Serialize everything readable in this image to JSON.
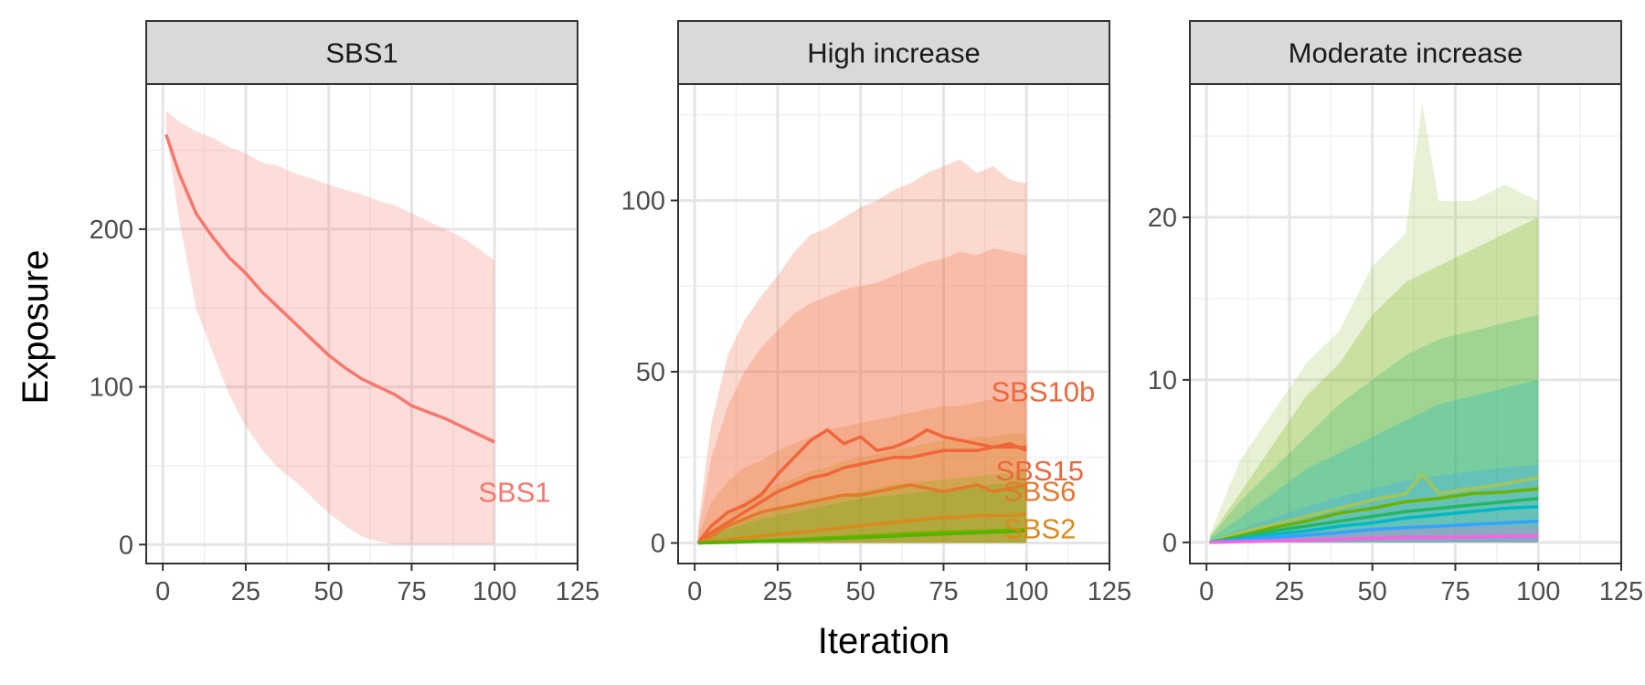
{
  "chart_data": {
    "type": "line",
    "xlabel": "Iteration",
    "ylabel": "Exposure",
    "grid": true,
    "legend": "none (direct labels)",
    "panels": [
      {
        "title": "SBS1",
        "xlim": [
          -5,
          125
        ],
        "ylim": [
          -12,
          292
        ],
        "xticks": [
          0,
          25,
          50,
          75,
          100,
          125
        ],
        "yticks": [
          0,
          100,
          200
        ],
        "series": [
          {
            "name": "SBS1",
            "color": "#F8766D",
            "x": [
              1,
              5,
              10,
              15,
              20,
              25,
              30,
              35,
              40,
              45,
              50,
              55,
              60,
              65,
              70,
              75,
              80,
              85,
              90,
              95,
              100
            ],
            "y": [
              260,
              235,
              210,
              195,
              182,
              172,
              160,
              150,
              140,
              130,
              120,
              112,
              105,
              100,
              95,
              88,
              84,
              80,
              75,
              70,
              65
            ],
            "lower": [
              262,
              205,
              150,
              122,
              95,
              75,
              60,
              48,
              40,
              30,
              20,
              12,
              5,
              2,
              0,
              0,
              0,
              0,
              0,
              0,
              0
            ],
            "upper": [
              275,
              268,
              262,
              258,
              252,
              248,
              242,
              240,
              235,
              232,
              228,
              225,
              222,
              218,
              215,
              210,
              205,
              200,
              195,
              188,
              180
            ]
          }
        ]
      },
      {
        "title": "High increase",
        "xlim": [
          -5,
          125
        ],
        "ylim": [
          -6,
          134
        ],
        "xticks": [
          0,
          25,
          50,
          75,
          100,
          125
        ],
        "yticks": [
          0,
          50,
          100
        ],
        "series": [
          {
            "name": "SBS10b",
            "color": "#F0663A",
            "x": [
              1,
              5,
              10,
              15,
              20,
              25,
              30,
              35,
              40,
              45,
              50,
              55,
              60,
              65,
              70,
              75,
              80,
              85,
              90,
              95,
              100
            ],
            "y": [
              0,
              5,
              9,
              11,
              14,
              20,
              25,
              30,
              33,
              29,
              31,
              27,
              28,
              30,
              33,
              31,
              30,
              29,
              28,
              29,
              27
            ],
            "lower": [
              0,
              0,
              0,
              0,
              0,
              0,
              0,
              0,
              0,
              0,
              0,
              0,
              0,
              0,
              0,
              0,
              0,
              0,
              0,
              0,
              0
            ],
            "upper": [
              5,
              35,
              55,
              65,
              72,
              78,
              85,
              90,
              92,
              95,
              98,
              100,
              103,
              105,
              108,
              110,
              112,
              108,
              110,
              106,
              105
            ]
          },
          {
            "name": "SBS15",
            "color": "#F0663A",
            "x": [
              1,
              5,
              10,
              15,
              20,
              25,
              30,
              35,
              40,
              45,
              50,
              55,
              60,
              65,
              70,
              75,
              80,
              85,
              90,
              95,
              100
            ],
            "y": [
              0,
              3,
              6,
              9,
              12,
              15,
              17,
              19,
              20,
              22,
              23,
              24,
              25,
              25,
              26,
              27,
              27,
              27,
              28,
              28,
              28
            ],
            "lower": [
              0,
              0,
              0,
              0,
              0,
              0,
              0,
              0,
              0,
              0,
              0,
              0,
              0,
              0,
              0,
              0,
              0,
              0,
              0,
              0,
              0
            ],
            "upper": [
              3,
              25,
              40,
              50,
              57,
              62,
              67,
              70,
              72,
              74,
              75,
              76,
              78,
              80,
              82,
              83,
              85,
              84,
              86,
              85,
              84
            ]
          },
          {
            "name": "SBS6",
            "color": "#E4792A",
            "x": [
              1,
              5,
              10,
              15,
              20,
              25,
              30,
              35,
              40,
              45,
              50,
              55,
              60,
              65,
              70,
              75,
              80,
              85,
              90,
              95,
              100
            ],
            "y": [
              0,
              2,
              5,
              7,
              9,
              10,
              11,
              12,
              13,
              14,
              14,
              15,
              16,
              17,
              16,
              15,
              16,
              17,
              15,
              16,
              17
            ],
            "lower": [
              0,
              0,
              0,
              0,
              0,
              0,
              0,
              0,
              0,
              0,
              0,
              0,
              0,
              0,
              0,
              0,
              0,
              0,
              0,
              0,
              0
            ],
            "upper": [
              2,
              12,
              18,
              22,
              24,
              27,
              29,
              31,
              33,
              34,
              35,
              36,
              37,
              38,
              39,
              40,
              40,
              41,
              42,
              41,
              42
            ]
          },
          {
            "name": "SBS2",
            "color": "#D98A1E",
            "x": [
              1,
              5,
              10,
              15,
              20,
              25,
              30,
              35,
              40,
              45,
              50,
              55,
              60,
              65,
              70,
              75,
              80,
              85,
              90,
              95,
              100
            ],
            "y": [
              0,
              0.5,
              1,
              1.5,
              2,
              2.5,
              3,
              3.5,
              4,
              4.5,
              5,
              5.5,
              6,
              6.5,
              7,
              7.5,
              7.5,
              8,
              8,
              8,
              8.5
            ],
            "lower": [
              0,
              0,
              0,
              0,
              0,
              0,
              0,
              0,
              0,
              0,
              0,
              0,
              0,
              0,
              0,
              0,
              0,
              0,
              0,
              0,
              0
            ],
            "upper": [
              1,
              5,
              9,
              12,
              15,
              17,
              19,
              21,
              22,
              24,
              25,
              26,
              27,
              28,
              29,
              30,
              30,
              31,
              31,
              32,
              32
            ]
          },
          {
            "name": "",
            "color": "#7CAE00",
            "x": [
              1,
              10,
              20,
              30,
              40,
              50,
              60,
              70,
              80,
              90,
              100
            ],
            "y": [
              0,
              0.3,
              0.6,
              1,
              1.5,
              2,
              2.5,
              3,
              3.3,
              3.6,
              4
            ],
            "lower": [
              0,
              0,
              0,
              0,
              0,
              0,
              0,
              0,
              0,
              0,
              0
            ],
            "upper": [
              1,
              5,
              8,
              11,
              13,
              15,
              17,
              18,
              19,
              20,
              21
            ]
          },
          {
            "name": "",
            "color": "#53B400",
            "x": [
              1,
              10,
              20,
              30,
              40,
              50,
              60,
              70,
              80,
              90,
              100
            ],
            "y": [
              0,
              0.2,
              0.5,
              0.8,
              1.2,
              1.6,
              2,
              2.4,
              2.8,
              3.2,
              3.5
            ],
            "lower": [
              0,
              0,
              0,
              0,
              0,
              0,
              0,
              0,
              0,
              0,
              0
            ],
            "upper": [
              1,
              4,
              7,
              9,
              11,
              13,
              14,
              15,
              16,
              17,
              18
            ]
          }
        ],
        "labels": [
          {
            "text": "SBS10b",
            "x": 105,
            "y": 44,
            "color": "#F0663A"
          },
          {
            "text": "SBS15",
            "x": 104,
            "y": 21,
            "color": "#F0663A"
          },
          {
            "text": "SBS6",
            "x": 104,
            "y": 15,
            "color": "#E4792A"
          },
          {
            "text": "SBS2",
            "x": 104,
            "y": 4,
            "color": "#D98A1E"
          }
        ]
      },
      {
        "title": "Moderate increase",
        "xlim": [
          -5,
          125
        ],
        "ylim": [
          -1.3,
          28.2
        ],
        "xticks": [
          0,
          25,
          50,
          75,
          100,
          125
        ],
        "yticks": [
          0,
          10,
          20
        ],
        "series": [
          {
            "name": "",
            "color": "#A3C65A",
            "x": [
              1,
              10,
              20,
              30,
              40,
              50,
              60,
              65,
              70,
              80,
              90,
              100
            ],
            "y": [
              0,
              0.6,
              1.1,
              1.6,
              2.1,
              2.6,
              3.0,
              4.2,
              3.0,
              3.3,
              3.6,
              4.0
            ],
            "lower": [
              0,
              0,
              0,
              0,
              0,
              0,
              0,
              0,
              0,
              0,
              0,
              0
            ],
            "upper": [
              0.5,
              5,
              8,
              11,
              13,
              17,
              19,
              27,
              21,
              21,
              22,
              21
            ]
          },
          {
            "name": "",
            "color": "#6BB100",
            "x": [
              1,
              10,
              20,
              30,
              40,
              50,
              60,
              70,
              80,
              90,
              100
            ],
            "y": [
              0,
              0.4,
              0.9,
              1.3,
              1.8,
              2.1,
              2.5,
              2.7,
              3.0,
              3.1,
              3.3
            ],
            "lower": [
              0,
              0,
              0,
              0,
              0,
              0,
              0,
              0,
              0,
              0,
              0
            ],
            "upper": [
              0.4,
              3,
              6,
              9,
              11,
              14,
              16,
              17,
              18,
              19,
              20
            ]
          },
          {
            "name": "",
            "color": "#24B565",
            "x": [
              1,
              10,
              20,
              30,
              40,
              50,
              60,
              70,
              80,
              90,
              100
            ],
            "y": [
              0,
              0.3,
              0.7,
              1.0,
              1.3,
              1.6,
              1.9,
              2.1,
              2.3,
              2.5,
              2.7
            ],
            "lower": [
              0,
              0,
              0,
              0,
              0,
              0,
              0,
              0,
              0,
              0,
              0
            ],
            "upper": [
              0.3,
              2.5,
              4.5,
              6.5,
              8.5,
              10,
              11.5,
              12.5,
              13,
              13.5,
              14
            ]
          },
          {
            "name": "",
            "color": "#00B8C7",
            "x": [
              1,
              10,
              20,
              30,
              40,
              50,
              60,
              70,
              80,
              90,
              100
            ],
            "y": [
              0,
              0.2,
              0.5,
              0.7,
              1.0,
              1.2,
              1.5,
              1.7,
              1.9,
              2.1,
              2.2
            ],
            "lower": [
              0,
              0,
              0,
              0,
              0,
              0,
              0,
              0,
              0,
              0,
              0
            ],
            "upper": [
              0.2,
              1.5,
              3,
              4.5,
              5.5,
              6.5,
              7.5,
              8.5,
              9,
              9.5,
              10
            ]
          },
          {
            "name": "",
            "color": "#35A2FF",
            "x": [
              1,
              10,
              20,
              30,
              40,
              50,
              60,
              70,
              80,
              90,
              100
            ],
            "y": [
              0,
              0.15,
              0.3,
              0.45,
              0.6,
              0.8,
              0.9,
              1.0,
              1.1,
              1.2,
              1.3
            ],
            "lower": [
              0,
              0,
              0,
              0,
              0,
              0,
              0,
              0,
              0,
              0,
              0
            ],
            "upper": [
              0.1,
              0.8,
              1.5,
              2.2,
              2.8,
              3.3,
              3.8,
              4.1,
              4.4,
              4.6,
              4.8
            ]
          },
          {
            "name": "",
            "color": "#F564E3",
            "x": [
              1,
              10,
              20,
              30,
              40,
              50,
              60,
              70,
              80,
              90,
              100
            ],
            "y": [
              0,
              0.05,
              0.1,
              0.15,
              0.2,
              0.25,
              0.3,
              0.32,
              0.35,
              0.38,
              0.4
            ],
            "lower": [
              0,
              0,
              0,
              0,
              0,
              0,
              0,
              0,
              0,
              0,
              0
            ],
            "upper": [
              0.05,
              0.3,
              0.5,
              0.6,
              0.7,
              0.8,
              0.9,
              0.95,
              1.0,
              1.0,
              1.0
            ]
          }
        ],
        "labels": []
      }
    ]
  }
}
